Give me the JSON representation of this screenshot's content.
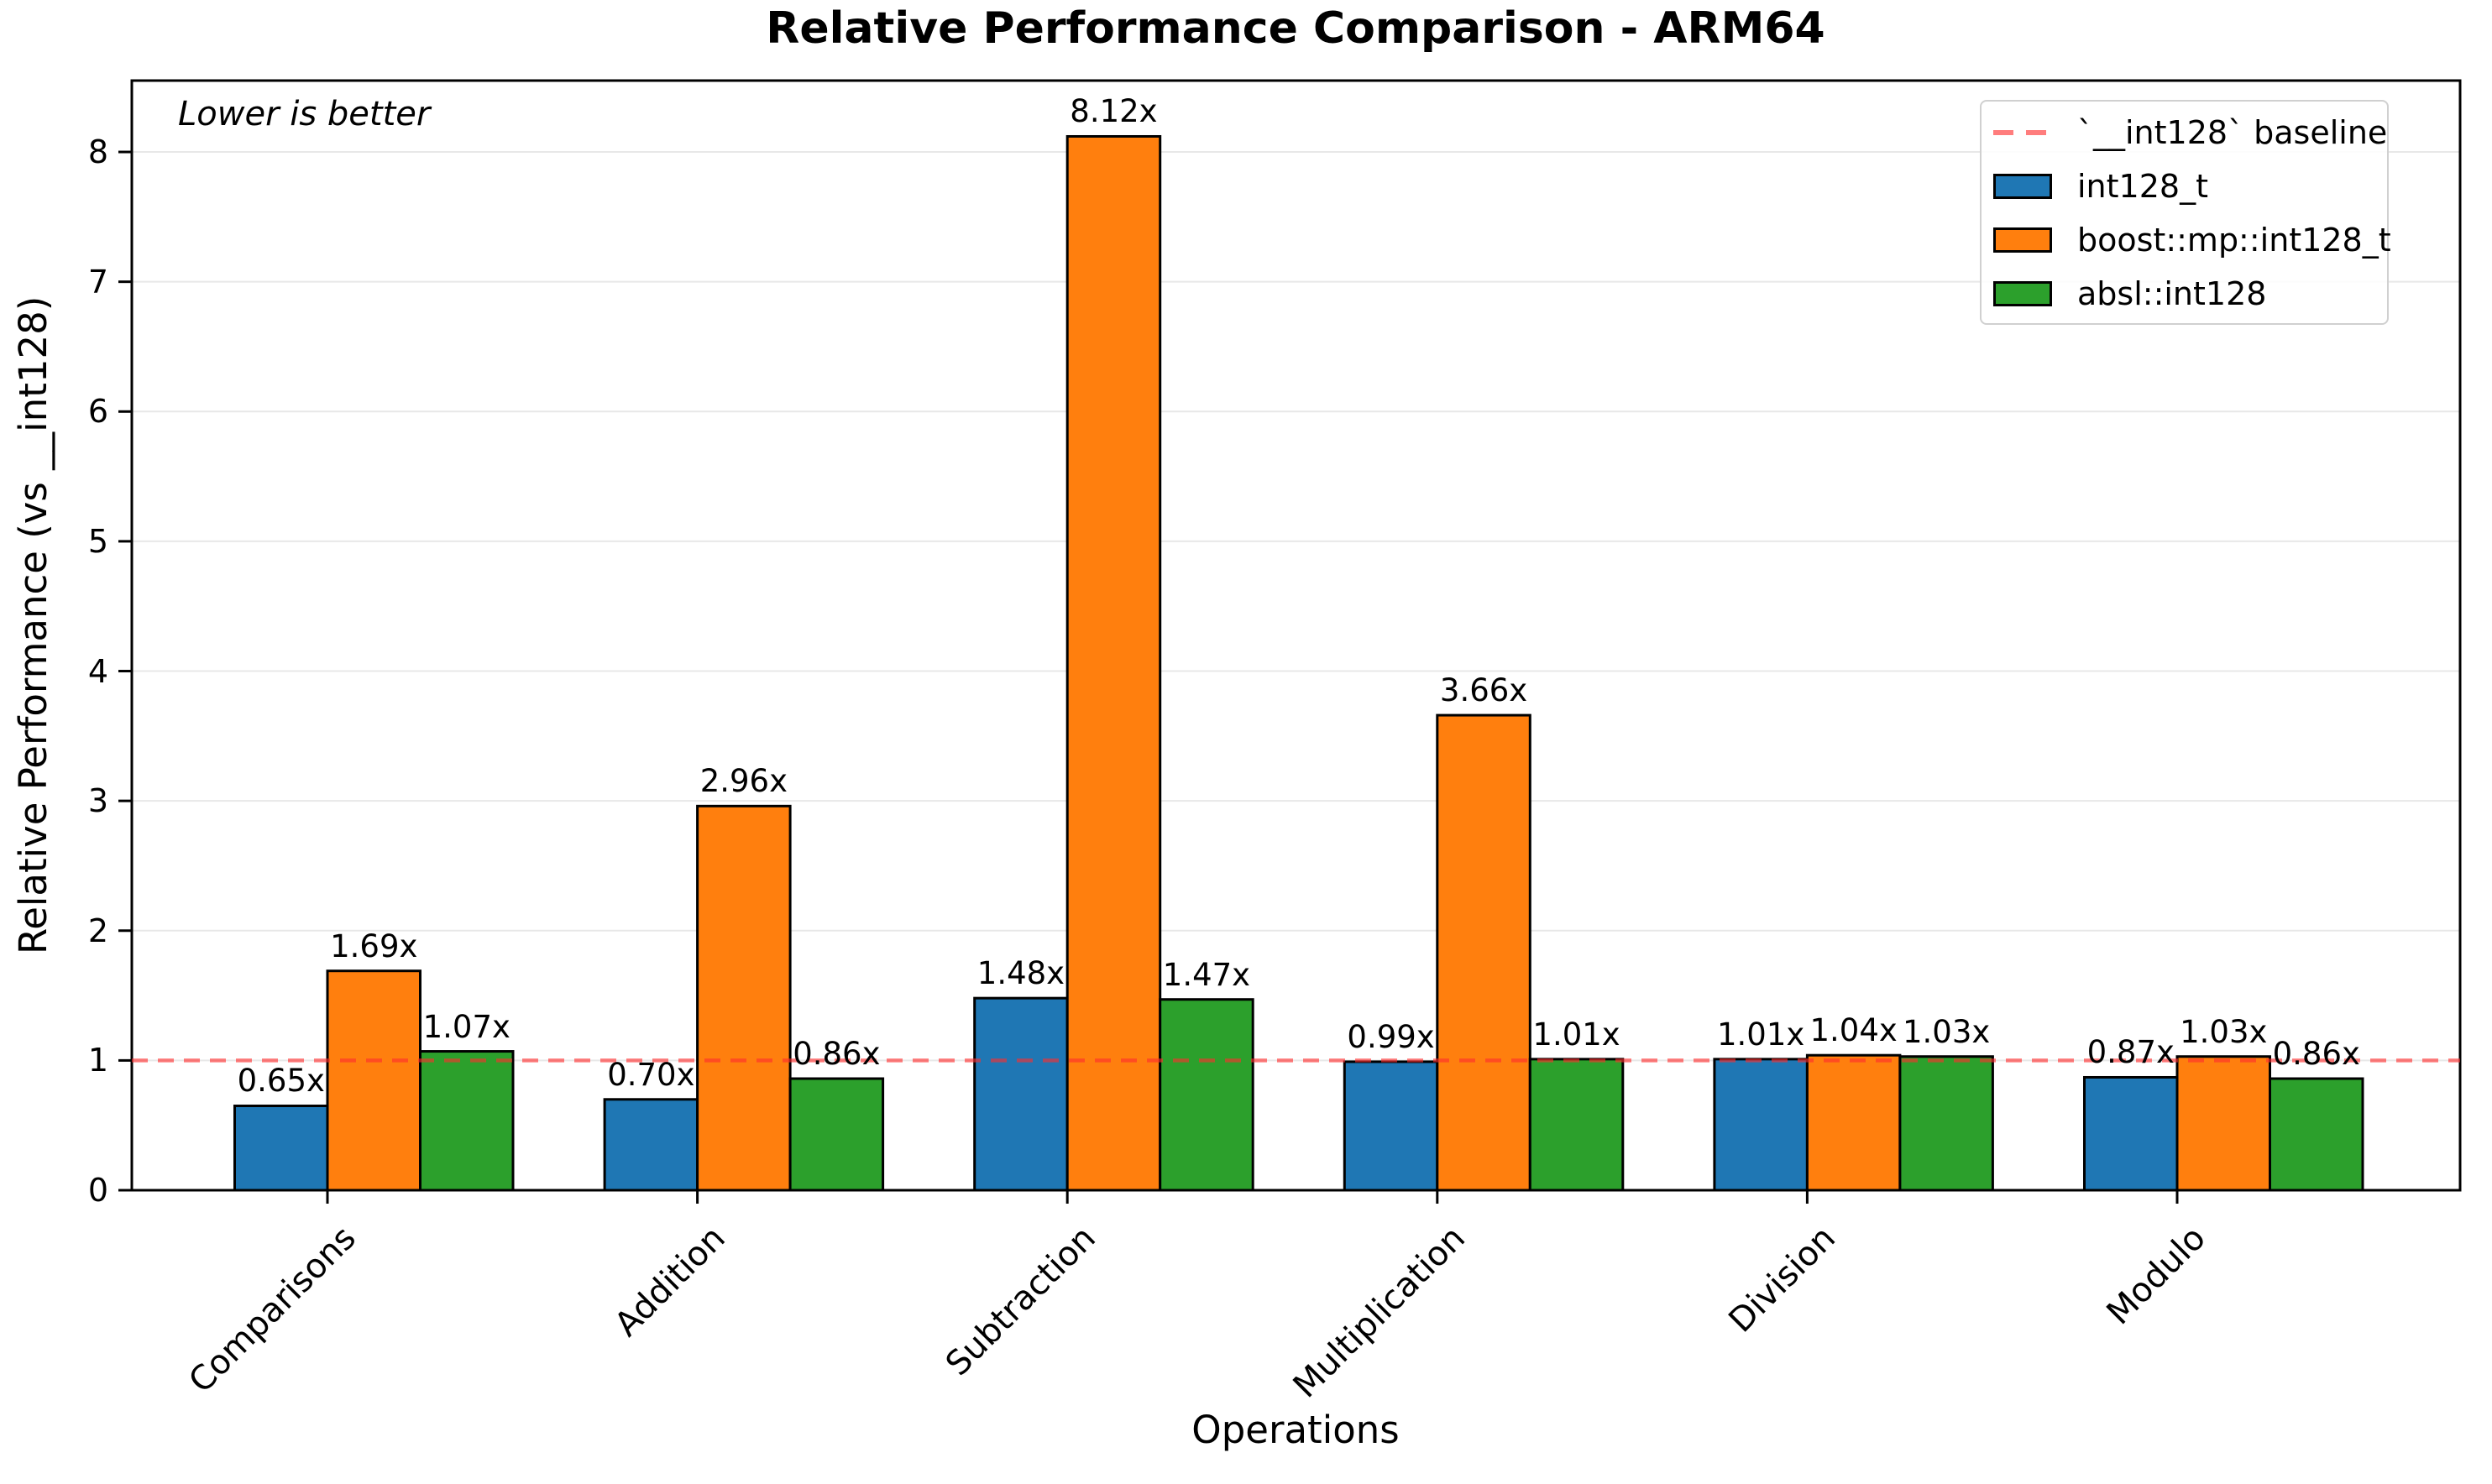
{
  "chart_data": {
    "type": "bar",
    "title": "Relative Performance Comparison - ARM64",
    "note": "Lower is better",
    "xlabel": "Operations",
    "ylabel": "Relative Performance (vs __int128)",
    "categories": [
      "Comparisons",
      "Addition",
      "Subtraction",
      "Multiplication",
      "Division",
      "Modulo"
    ],
    "series": [
      {
        "name": "int128_t",
        "color": "#1f77b4",
        "values": [
          0.65,
          0.7,
          1.48,
          0.99,
          1.01,
          0.87
        ]
      },
      {
        "name": "boost::mp::int128_t",
        "color": "#ff7f0e",
        "values": [
          1.69,
          2.96,
          8.12,
          3.66,
          1.04,
          1.03
        ]
      },
      {
        "name": "absl::int128",
        "color": "#2ca02c",
        "values": [
          1.07,
          0.86,
          1.47,
          1.01,
          1.03,
          0.86
        ]
      }
    ],
    "baseline": {
      "label": "`__int128` baseline",
      "value": 1.0,
      "color": "rgba(255,45,45,0.62)"
    },
    "value_suffix": "x",
    "y_ticks": [
      0,
      1,
      2,
      3,
      4,
      5,
      6,
      7,
      8
    ],
    "ylim": [
      0,
      8.55
    ],
    "grid": true,
    "grid_color": "#e8e8e8",
    "bar_edge_color": "#000000",
    "legend_position": "upper right"
  }
}
